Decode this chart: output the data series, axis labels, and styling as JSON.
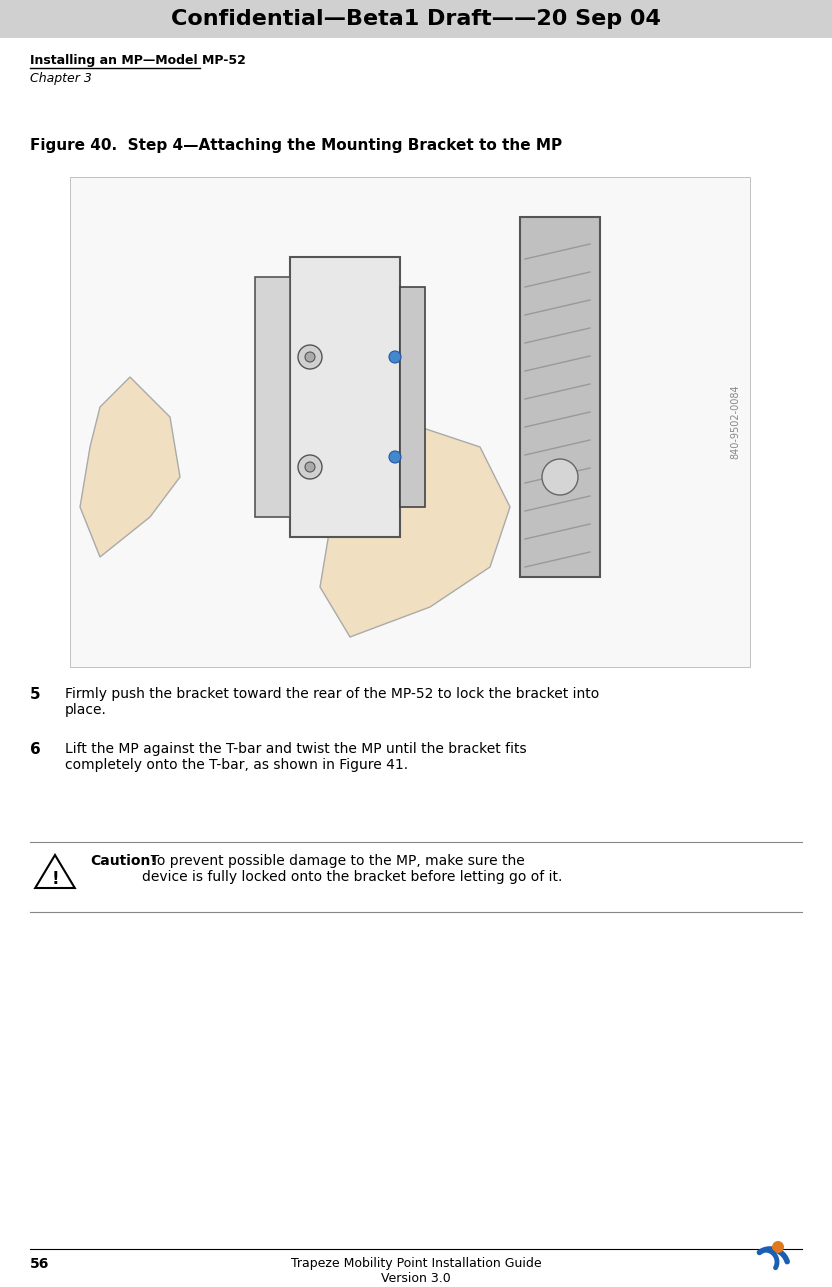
{
  "header_text": "Confidential—Beta1 Draft——20 Sep 04",
  "header_display": "Confidential—Beta1 Draft——20 Sep 04",
  "header_bg": "#d0d0d0",
  "header_text_color": "#000000",
  "page_bg": "#ffffff",
  "top_bold_text": "Installing an MP—Model MP-52",
  "chapter_text": "Chapter 3",
  "figure_caption": "Figure 40.  Step 4—Attaching the Mounting Bracket to the MP",
  "step5_num": "5",
  "step5_text": "Firmly push the bracket toward the rear of the MP-52 to lock the bracket into\nplace.",
  "step6_num": "6",
  "step6_text": "Lift the MP against the T-bar and twist the MP until the bracket fits\ncompletely onto the T-bar, as shown in Figure 41.",
  "caution_bold": "Caution!",
  "caution_text": "  To prevent possible damage to the MP, make sure the\ndevice is fully locked onto the bracket before letting go of it.",
  "footer_page_num": "56",
  "footer_center": "Trapeze Mobility Point Installation Guide\nVersion 3.0",
  "logo_colors": [
    "#e07820",
    "#1a5fb4"
  ],
  "image_placeholder_color": "#f0f0f0",
  "image_border_color": "#cccccc",
  "watermark_text": "840-9502-0084"
}
